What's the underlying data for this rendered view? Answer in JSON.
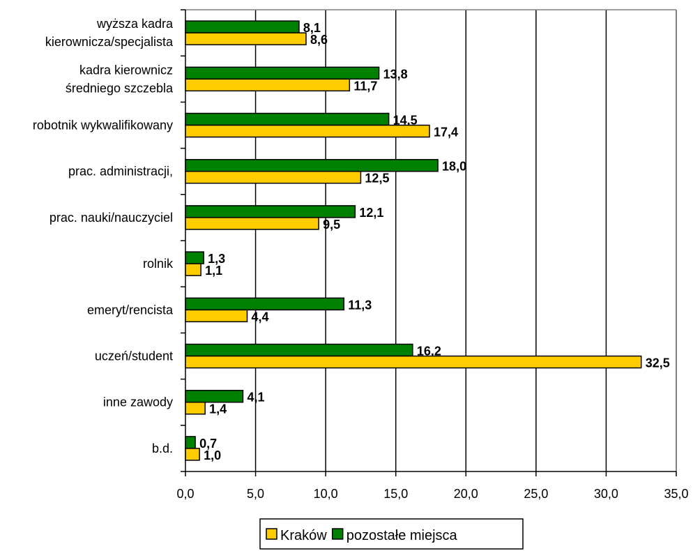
{
  "chart_data": {
    "type": "bar",
    "orientation": "horizontal",
    "categories": [
      [
        "wyższa kadra",
        "kierownicza/specjalista"
      ],
      [
        "kadra kierownicz",
        "średniego szczebla"
      ],
      [
        "robotnik wykwalifikowany"
      ],
      [
        "prac. administracji,"
      ],
      [
        "prac. nauki/nauczyciel"
      ],
      [
        "rolnik"
      ],
      [
        "emeryt/rencista"
      ],
      [
        "uczeń/student"
      ],
      [
        "inne zawody"
      ],
      [
        "b.d."
      ]
    ],
    "series": [
      {
        "name": "pozostałe miejsca",
        "color": "#008000",
        "values": [
          8.1,
          13.8,
          14.5,
          18.0,
          12.1,
          1.3,
          11.3,
          16.2,
          4.1,
          0.7
        ],
        "labels": [
          "8,1",
          "13,8",
          "14,5",
          "18,0",
          "12,1",
          "1,3",
          "11,3",
          "16,2",
          "4,1",
          "0,7"
        ]
      },
      {
        "name": "Kraków",
        "color": "#FFCC00",
        "values": [
          8.6,
          11.7,
          17.4,
          12.5,
          9.5,
          1.1,
          4.4,
          32.5,
          1.4,
          1.0
        ],
        "labels": [
          "8,6",
          "11,7",
          "17,4",
          "12,5",
          "9,5",
          "1,1",
          "4,4",
          "32,5",
          "1,4",
          "1,0"
        ]
      }
    ],
    "xlim": [
      0,
      35
    ],
    "xticks": [
      0,
      5,
      10,
      15,
      20,
      25,
      30,
      35
    ],
    "xtick_labels": [
      "0,0",
      "5,0",
      "10,0",
      "15,0",
      "20,0",
      "25,0",
      "30,0",
      "35,0"
    ],
    "grid": "vertical",
    "legend": {
      "position": "bottom",
      "items": [
        {
          "name": "Kraków",
          "color": "#FFCC00"
        },
        {
          "name": "pozostałe miejsca",
          "color": "#008000"
        }
      ]
    }
  }
}
